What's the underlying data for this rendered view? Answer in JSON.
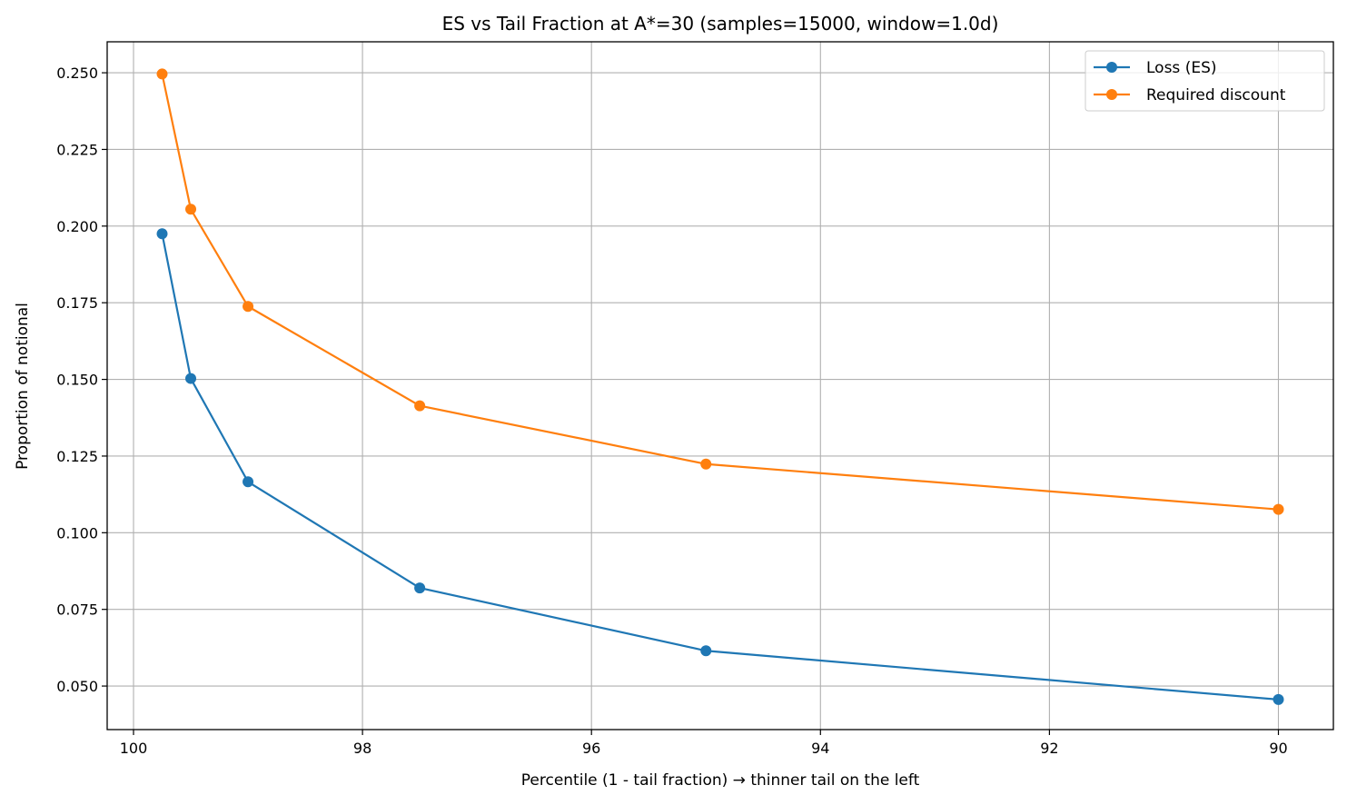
{
  "chart_data": {
    "type": "line",
    "title": "ES vs Tail Fraction at A*=30 (samples=15000, window=1.0d)",
    "xlabel": "Percentile (1 - tail fraction)  →  thinner tail on the left",
    "ylabel": "Proportion of notional",
    "x": [
      99.75,
      99.5,
      99.0,
      97.5,
      95.0,
      90.0
    ],
    "xlim": [
      100.23,
      89.52
    ],
    "ylim": [
      0.0358,
      0.2601
    ],
    "x_inverted": true,
    "xticks": [
      100,
      98,
      96,
      94,
      92,
      90
    ],
    "xtick_labels": [
      "100",
      "98",
      "96",
      "94",
      "92",
      "90"
    ],
    "yticks": [
      0.05,
      0.075,
      0.1,
      0.125,
      0.15,
      0.175,
      0.2,
      0.225,
      0.25
    ],
    "ytick_labels": [
      "0.050",
      "0.075",
      "0.100",
      "0.125",
      "0.150",
      "0.175",
      "0.200",
      "0.225",
      "0.250"
    ],
    "grid": true,
    "legend_position": "top-right",
    "series": [
      {
        "name": "Loss (ES)",
        "color": "#1f77b4",
        "marker": "circle",
        "values": [
          0.1975,
          0.1503,
          0.1166,
          0.082,
          0.0615,
          0.0456
        ]
      },
      {
        "name": "Required discount",
        "color": "#ff7f0e",
        "marker": "circle",
        "values": [
          0.2496,
          0.2055,
          0.1738,
          0.1414,
          0.1224,
          0.1076
        ]
      }
    ]
  }
}
